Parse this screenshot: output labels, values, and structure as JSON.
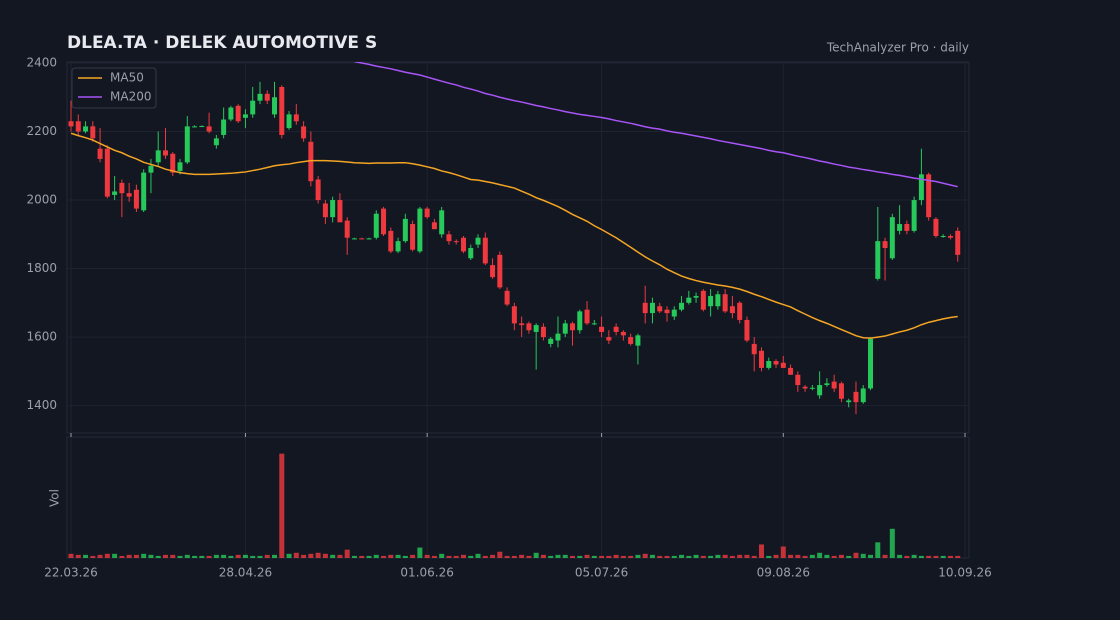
{
  "chart_data": {
    "type": "candlestick",
    "title": "DLEA.TA  ·  DELEK AUTOMOTIVE S",
    "subtitle": "TechAnalyzer Pro · daily",
    "volume_label": "Vol",
    "categories": [
      "22.03.26",
      null,
      null,
      null,
      null,
      null,
      null,
      null,
      null,
      null,
      null,
      null,
      null,
      null,
      null,
      null,
      null,
      null,
      null,
      null,
      null,
      null,
      null,
      null,
      "28.04.26",
      null,
      null,
      null,
      null,
      null,
      null,
      null,
      null,
      null,
      null,
      null,
      null,
      null,
      null,
      null,
      null,
      null,
      null,
      null,
      null,
      null,
      null,
      null,
      null,
      "01.06.26",
      null,
      null,
      null,
      null,
      null,
      null,
      null,
      null,
      null,
      null,
      null,
      null,
      null,
      null,
      null,
      null,
      null,
      null,
      null,
      null,
      null,
      null,
      null,
      "05.07.26",
      null,
      null,
      null,
      null,
      null,
      null,
      null,
      null,
      null,
      null,
      null,
      null,
      null,
      null,
      null,
      null,
      null,
      null,
      null,
      null,
      null,
      null,
      null,
      null,
      "09.08.26",
      null,
      null,
      null,
      null,
      null,
      null,
      null,
      null,
      null,
      null,
      null,
      null,
      null,
      null,
      null,
      null,
      null,
      null,
      null,
      null,
      null,
      null,
      null,
      null,
      "10.09.26"
    ],
    "open": [
      2230,
      2230,
      2200,
      2215,
      2150,
      2150,
      2015,
      2050,
      2020,
      2030,
      1970,
      2080,
      2110,
      2145,
      2135,
      2085,
      2110,
      2215,
      2215,
      2215,
      2160,
      2190,
      2235,
      2275,
      2240,
      2250,
      2290,
      2310,
      2250,
      2330,
      2210,
      2250,
      2215,
      2170,
      2060,
      1990,
      1950,
      2000,
      1940,
      1888,
      1888,
      1888,
      1890,
      1975,
      1910,
      1850,
      1880,
      1930,
      1850,
      1975,
      1935,
      1900,
      1900,
      1880,
      1890,
      1830,
      1870,
      1890,
      1810,
      1840,
      1735,
      1690,
      1640,
      1640,
      1615,
      1630,
      1580,
      1590,
      1610,
      1640,
      1620,
      1680,
      1640,
      1630,
      1600,
      1630,
      1615,
      1600,
      1575,
      1700,
      1670,
      1690,
      1680,
      1660,
      1680,
      1700,
      1715,
      1735,
      1690,
      1690,
      1725,
      1690,
      1700,
      1650,
      1580,
      1560,
      1510,
      1530,
      1525,
      1510,
      1490,
      1455,
      1450,
      1430,
      1460,
      1470,
      1465,
      1410,
      1440,
      1410,
      1450,
      1770,
      1880,
      1830,
      1910,
      1930,
      1910,
      2000,
      2075,
      1945,
      1895,
      1895,
      1910,
      null
    ],
    "high": [
      2290,
      2250,
      2230,
      2230,
      2210,
      2160,
      2070,
      2060,
      2050,
      2045,
      2090,
      2120,
      2200,
      2210,
      2140,
      2120,
      2245,
      2218,
      2218,
      2255,
      2190,
      2270,
      2275,
      2280,
      2265,
      2330,
      2345,
      2320,
      2345,
      2335,
      2260,
      2280,
      2230,
      2200,
      2070,
      2000,
      2010,
      2020,
      1950,
      1890,
      1890,
      1890,
      1970,
      1980,
      1920,
      1890,
      1960,
      1940,
      1980,
      1980,
      1945,
      1980,
      1910,
      1885,
      1895,
      1870,
      1900,
      1905,
      1830,
      1850,
      1745,
      1700,
      1660,
      1645,
      1640,
      1640,
      1600,
      1660,
      1650,
      1645,
      1680,
      1705,
      1650,
      1660,
      1620,
      1640,
      1620,
      1610,
      1610,
      1750,
      1715,
      1700,
      1690,
      1690,
      1720,
      1735,
      1730,
      1740,
      1740,
      1735,
      1740,
      1720,
      1705,
      1660,
      1600,
      1570,
      1540,
      1535,
      1545,
      1520,
      1500,
      1460,
      1460,
      1500,
      1480,
      1490,
      1470,
      1420,
      1470,
      1460,
      1600,
      1980,
      1890,
      1960,
      1985,
      1940,
      2010,
      2150,
      2080,
      1950,
      1900,
      1900,
      1920,
      null
    ],
    "low": [
      2200,
      2190,
      2195,
      2170,
      2110,
      2005,
      2000,
      1950,
      1995,
      1965,
      1965,
      2020,
      2100,
      2120,
      2070,
      2075,
      2105,
      2212,
      2213,
      2195,
      2150,
      2180,
      2230,
      2225,
      2210,
      2240,
      2280,
      2280,
      2240,
      2180,
      2205,
      2220,
      2170,
      2040,
      1990,
      1930,
      1935,
      1940,
      1840,
      1886,
      1886,
      1885,
      1885,
      1895,
      1845,
      1845,
      1875,
      1850,
      1845,
      1945,
      1915,
      1890,
      1870,
      1870,
      1845,
      1825,
      1860,
      1810,
      1770,
      1740,
      1690,
      1620,
      1600,
      1610,
      1505,
      1590,
      1570,
      1570,
      1600,
      1575,
      1610,
      1635,
      1635,
      1600,
      1580,
      1605,
      1590,
      1575,
      1520,
      1640,
      1640,
      1670,
      1645,
      1650,
      1675,
      1695,
      1700,
      1675,
      1660,
      1680,
      1670,
      1655,
      1640,
      1585,
      1500,
      1500,
      1505,
      1510,
      1510,
      1490,
      1440,
      1440,
      1445,
      1420,
      1455,
      1440,
      1410,
      1395,
      1375,
      1405,
      1445,
      1765,
      1765,
      1825,
      1900,
      1900,
      1905,
      1985,
      1940,
      1890,
      1890,
      1885,
      1820,
      null
    ],
    "close": [
      2215,
      2200,
      2215,
      2180,
      2120,
      2010,
      2025,
      2020,
      2010,
      1975,
      2080,
      2100,
      2145,
      2130,
      2080,
      2110,
      2215,
      2215,
      2216,
      2200,
      2180,
      2235,
      2270,
      2230,
      2250,
      2290,
      2310,
      2290,
      2300,
      2190,
      2250,
      2230,
      2180,
      2055,
      2000,
      1950,
      2000,
      1935,
      1890,
      1888,
      1887,
      1888,
      1960,
      1900,
      1850,
      1880,
      1945,
      1855,
      1975,
      1950,
      1915,
      1970,
      1880,
      1878,
      1850,
      1860,
      1890,
      1815,
      1775,
      1745,
      1695,
      1640,
      1635,
      1620,
      1635,
      1600,
      1595,
      1610,
      1640,
      1620,
      1675,
      1640,
      1640,
      1615,
      1590,
      1615,
      1605,
      1580,
      1605,
      1670,
      1700,
      1675,
      1670,
      1680,
      1700,
      1715,
      1720,
      1680,
      1720,
      1725,
      1675,
      1670,
      1650,
      1590,
      1550,
      1510,
      1530,
      1520,
      1510,
      1490,
      1460,
      1450,
      1452,
      1460,
      1465,
      1450,
      1420,
      1415,
      1410,
      1450,
      1595,
      1880,
      1860,
      1950,
      1930,
      1910,
      2000,
      2075,
      1950,
      1895,
      1895,
      1890,
      1840,
      null
    ],
    "volume": [
      4,
      3,
      3,
      2,
      3,
      4,
      4,
      2,
      3,
      3,
      4,
      3,
      2,
      3,
      3,
      2,
      3,
      2,
      2,
      2,
      3,
      3,
      2,
      3,
      3,
      2,
      2,
      3,
      3,
      100,
      4,
      5,
      3,
      4,
      5,
      4,
      3,
      3,
      8,
      2,
      2,
      2,
      3,
      2,
      3,
      3,
      2,
      3,
      10,
      3,
      2,
      4,
      2,
      2,
      3,
      2,
      4,
      2,
      3,
      6,
      2,
      2,
      3,
      2,
      5,
      3,
      2,
      3,
      3,
      2,
      2,
      3,
      2,
      2,
      2,
      3,
      2,
      2,
      3,
      4,
      3,
      2,
      2,
      2,
      3,
      2,
      3,
      2,
      2,
      3,
      3,
      2,
      3,
      3,
      2,
      13,
      2,
      3,
      11,
      3,
      3,
      2,
      3,
      5,
      3,
      2,
      3,
      2,
      5,
      4,
      3,
      15,
      3,
      28,
      3,
      2,
      3,
      2,
      2,
      2,
      2,
      2,
      2,
      null
    ],
    "series": [
      {
        "name": "MA50",
        "color": "#f5a524",
        "values": [
          2195,
          2188,
          2182,
          2175,
          2165,
          2155,
          2145,
          2138,
          2128,
          2120,
          2110,
          2104,
          2098,
          2090,
          2085,
          2080,
          2077,
          2075,
          2075,
          2075,
          2076,
          2077,
          2078,
          2080,
          2082,
          2086,
          2090,
          2095,
          2100,
          2103,
          2105,
          2109,
          2112,
          2115,
          2115,
          2115,
          2114,
          2113,
          2111,
          2109,
          2108,
          2107,
          2108,
          2108,
          2108,
          2109,
          2109,
          2106,
          2102,
          2097,
          2092,
          2085,
          2080,
          2074,
          2067,
          2060,
          2058,
          2054,
          2050,
          2045,
          2040,
          2035,
          2026,
          2017,
          2007,
          1999,
          1990,
          1981,
          1970,
          1958,
          1948,
          1938,
          1925,
          1914,
          1902,
          1890,
          1876,
          1862,
          1848,
          1834,
          1822,
          1811,
          1798,
          1788,
          1778,
          1771,
          1765,
          1760,
          1756,
          1752,
          1749,
          1745,
          1740,
          1733,
          1725,
          1718,
          1710,
          1702,
          1695,
          1688,
          1677,
          1667,
          1657,
          1648,
          1640,
          1631,
          1622,
          1613,
          1604,
          1598,
          1597,
          1600,
          1603,
          1609,
          1615,
          1620,
          1627,
          1636,
          1643,
          1648,
          1653,
          1657,
          1660,
          null
        ]
      },
      {
        "name": "MA200",
        "color": "#a855f7",
        "values": [
          null,
          null,
          null,
          null,
          null,
          null,
          null,
          null,
          null,
          null,
          null,
          null,
          null,
          null,
          null,
          null,
          null,
          null,
          null,
          null,
          null,
          null,
          null,
          null,
          null,
          null,
          null,
          null,
          null,
          null,
          null,
          null,
          null,
          null,
          null,
          null,
          null,
          null,
          null,
          2404,
          2400,
          2396,
          2391,
          2387,
          2383,
          2378,
          2373,
          2369,
          2365,
          2359,
          2353,
          2347,
          2341,
          2336,
          2329,
          2324,
          2318,
          2311,
          2306,
          2300,
          2295,
          2290,
          2286,
          2281,
          2276,
          2272,
          2267,
          2263,
          2258,
          2254,
          2250,
          2247,
          2244,
          2241,
          2237,
          2232,
          2228,
          2224,
          2219,
          2214,
          2210,
          2207,
          2202,
          2198,
          2195,
          2191,
          2187,
          2183,
          2179,
          2174,
          2170,
          2166,
          2162,
          2158,
          2154,
          2150,
          2145,
          2141,
          2138,
          2133,
          2128,
          2124,
          2119,
          2114,
          2110,
          2105,
          2101,
          2096,
          2093,
          2089,
          2086,
          2082,
          2079,
          2075,
          2072,
          2068,
          2064,
          2061,
          2057,
          2054,
          2049,
          2044,
          2039,
          null
        ]
      }
    ],
    "up_color": "#26c95a",
    "down_color": "#f0393f",
    "ylim": [
      1320,
      2400
    ],
    "yticks": [
      1400,
      1600,
      1800,
      2000,
      2200,
      2400
    ],
    "volume_ylim": [
      0,
      115
    ],
    "grid": true,
    "legend": "upper left"
  }
}
